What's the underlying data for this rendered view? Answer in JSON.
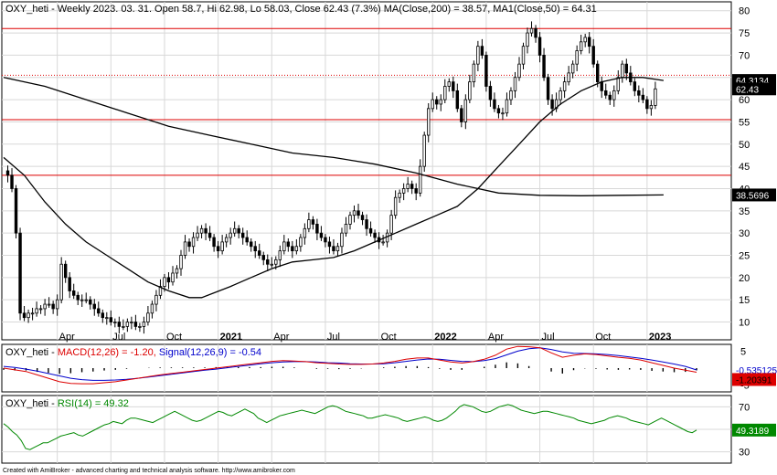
{
  "colors": {
    "candle_up": "#ffffff",
    "candle_down": "#000000",
    "ma": "#000000",
    "hline": "#dd0000",
    "macd": "#dd0000",
    "signal": "#0000cc",
    "rsi": "#008800",
    "grid": "#d8d8d8"
  },
  "chart_data": [
    {
      "type": "candlestick",
      "title": "OXY_heti - Weekly 2023. 03. 31. Open 58.7, Hi 62.98, Lo 58.03, Close 62.43 (7.3%) MA(Close,200) = 38.57, MA1(Close,50) = 64.31",
      "ylim": [
        6,
        82
      ],
      "y_ticks": [
        10,
        15,
        20,
        25,
        30,
        35,
        40,
        45,
        50,
        55,
        60,
        65,
        70,
        75,
        80
      ],
      "x_tick_labels": [
        {
          "label": "Apr",
          "bold": false,
          "x": 13
        },
        {
          "label": "Jul",
          "bold": false,
          "x": 26
        },
        {
          "label": "Oct",
          "bold": false,
          "x": 39
        },
        {
          "label": "2021",
          "bold": true,
          "x": 52
        },
        {
          "label": "Apr",
          "bold": false,
          "x": 65
        },
        {
          "label": "Jul",
          "bold": false,
          "x": 78
        },
        {
          "label": "Oct",
          "bold": false,
          "x": 91
        },
        {
          "label": "2022",
          "bold": true,
          "x": 104
        },
        {
          "label": "Apr",
          "bold": false,
          "x": 117
        },
        {
          "label": "Jul",
          "bold": false,
          "x": 130
        },
        {
          "label": "Oct",
          "bold": false,
          "x": 143
        },
        {
          "label": "2023",
          "bold": true,
          "x": 156
        }
      ],
      "x_range": [
        0,
        168
      ],
      "closes": [
        44,
        43,
        40,
        30,
        12,
        11,
        12,
        12,
        13,
        13,
        14,
        14,
        13,
        15,
        23,
        20,
        17,
        16,
        15,
        15,
        15,
        14,
        13,
        12,
        11,
        11,
        10,
        10,
        9,
        9,
        10,
        10,
        9,
        9,
        10,
        12,
        14,
        16,
        18,
        20,
        19,
        21,
        22,
        25,
        28,
        27,
        29,
        30,
        31,
        30,
        29,
        27,
        26,
        28,
        29,
        30,
        31,
        30,
        29,
        28,
        27,
        26,
        25,
        24,
        23,
        23,
        24,
        26,
        28,
        27,
        26,
        27,
        29,
        31,
        33,
        32,
        30,
        29,
        28,
        27,
        26,
        27,
        30,
        32,
        34,
        35,
        34,
        33,
        31,
        30,
        29,
        28,
        28,
        30,
        34,
        38,
        39,
        40,
        41,
        40,
        39,
        45,
        52,
        58,
        60,
        59,
        60,
        63,
        64,
        62,
        58,
        55,
        60,
        64,
        68,
        72,
        70,
        63,
        60,
        58,
        57,
        57,
        60,
        62,
        65,
        68,
        72,
        75,
        76,
        74,
        70,
        65,
        60,
        58,
        60,
        62,
        64,
        66,
        68,
        71,
        73,
        74,
        72,
        68,
        64,
        62,
        61,
        60,
        62,
        65,
        68,
        66,
        64,
        62,
        61,
        60,
        58,
        58.7,
        62.43
      ],
      "wick_pad": 1.6,
      "ma_long": {
        "name": "MA(Close,200)",
        "last": 38.57,
        "points": [
          [
            0,
            65
          ],
          [
            10,
            63
          ],
          [
            20,
            60
          ],
          [
            30,
            57
          ],
          [
            40,
            54
          ],
          [
            50,
            52
          ],
          [
            60,
            50
          ],
          [
            70,
            48
          ],
          [
            80,
            47
          ],
          [
            90,
            45.5
          ],
          [
            100,
            43.5
          ],
          [
            110,
            41
          ],
          [
            120,
            39
          ],
          [
            130,
            38.5
          ],
          [
            140,
            38.4
          ],
          [
            150,
            38.5
          ],
          [
            160,
            38.57
          ]
        ]
      },
      "ma_mid": {
        "name": "MA1(Close,50)",
        "last": 64.31,
        "points": [
          [
            0,
            47
          ],
          [
            5,
            43
          ],
          [
            10,
            37
          ],
          [
            15,
            32
          ],
          [
            20,
            28
          ],
          [
            25,
            25
          ],
          [
            30,
            22
          ],
          [
            35,
            19
          ],
          [
            40,
            17
          ],
          [
            45,
            15.5
          ],
          [
            48,
            15.5
          ],
          [
            55,
            18
          ],
          [
            60,
            20
          ],
          [
            65,
            22
          ],
          [
            70,
            23.5
          ],
          [
            75,
            24
          ],
          [
            80,
            24.5
          ],
          [
            85,
            26
          ],
          [
            90,
            28
          ],
          [
            95,
            30
          ],
          [
            100,
            32
          ],
          [
            105,
            34
          ],
          [
            110,
            36
          ],
          [
            115,
            40
          ],
          [
            120,
            45
          ],
          [
            125,
            50
          ],
          [
            130,
            55
          ],
          [
            135,
            59
          ],
          [
            140,
            62
          ],
          [
            145,
            64
          ],
          [
            150,
            65
          ],
          [
            155,
            65
          ],
          [
            160,
            64.31
          ]
        ]
      },
      "horizontal_lines": [
        76,
        65.5,
        55.5,
        43
      ],
      "dotted_line": 65.5,
      "value_tags": [
        "64.3134",
        "62.43",
        "38.5696"
      ]
    },
    {
      "type": "line",
      "title_prefix": "OXY_heti - ",
      "title_macd": "MACD(12,26) = -1.20, ",
      "title_signal": "Signal(12,26,9) = -0.54",
      "ylim": [
        -7,
        7
      ],
      "y_ticks": [
        5,
        -5
      ],
      "macd": [
        0,
        -0.5,
        -1,
        -2,
        -3,
        -4,
        -4.5,
        -4.6,
        -4.6,
        -4.3,
        -4,
        -3.5,
        -3,
        -2.5,
        -2,
        -1.6,
        -1.2,
        -0.8,
        -0.4,
        0,
        0.4,
        0.8,
        1.2,
        1.6,
        2,
        2.2,
        2.1,
        1.9,
        1.6,
        1.4,
        1.2,
        1.1,
        1.1,
        1.2,
        1.5,
        2,
        2.6,
        3,
        3,
        2.4,
        1.8,
        1.5,
        1.9,
        2.6,
        3.8,
        5.6,
        6.4,
        6.3,
        6,
        4.5,
        3.2,
        3.8,
        4.2,
        4,
        3.6,
        3.2,
        2.9,
        2.4,
        1.6,
        0.8,
        0,
        -0.6,
        -1.2
      ],
      "signal": [
        0.5,
        0.2,
        -0.3,
        -0.9,
        -1.6,
        -2.3,
        -3,
        -3.4,
        -3.6,
        -3.6,
        -3.5,
        -3.3,
        -3,
        -2.6,
        -2.2,
        -1.8,
        -1.4,
        -1,
        -0.6,
        -0.3,
        0.1,
        0.5,
        0.9,
        1.3,
        1.6,
        1.8,
        1.9,
        1.9,
        1.8,
        1.6,
        1.5,
        1.3,
        1.2,
        1.2,
        1.3,
        1.6,
        2,
        2.4,
        2.7,
        2.6,
        2.3,
        2,
        1.9,
        2.2,
        2.8,
        3.9,
        5,
        5.7,
        6,
        5.5,
        4.8,
        4.4,
        4.3,
        4.2,
        4,
        3.7,
        3.3,
        2.9,
        2.4,
        1.8,
        1.2,
        0.5,
        -0.54
      ],
      "histogram": [
        -0.5,
        -0.7,
        -0.7,
        -1.1,
        -1.4,
        -1.7,
        -1.5,
        -1.2,
        -1,
        -0.7,
        -0.5,
        -0.2,
        0,
        0.1,
        0.2,
        0.2,
        0.2,
        0.2,
        0.2,
        0.3,
        0.3,
        0.3,
        0.3,
        0.3,
        0.4,
        0.4,
        0.2,
        0,
        -0.2,
        -0.2,
        -0.3,
        -0.2,
        -0.1,
        0,
        0.2,
        0.4,
        0.6,
        0.6,
        0.3,
        -0.2,
        -0.5,
        -0.5,
        0,
        0.4,
        1,
        1.7,
        1.4,
        0.6,
        0,
        -1,
        -1.6,
        -0.6,
        -0.1,
        -0.2,
        -0.4,
        -0.5,
        -0.4,
        -0.5,
        -0.8,
        -1,
        -1.2,
        -1.1,
        -0.66
      ],
      "value_tags": [
        "-0.535125",
        "-1.20391"
      ]
    },
    {
      "type": "line",
      "title_prefix": "OXY_heti - ",
      "title_rsi": "RSI(14) = 49.32",
      "ylim": [
        20,
        80
      ],
      "y_ticks": [
        70,
        50,
        30
      ],
      "rsi": [
        55,
        52,
        48,
        45,
        40,
        33,
        32,
        34,
        36,
        38,
        38,
        40,
        42,
        44,
        45,
        46,
        47,
        45,
        44,
        46,
        48,
        50,
        52,
        54,
        55,
        57,
        56,
        55,
        58,
        60,
        60,
        59,
        58,
        57,
        56,
        58,
        60,
        62,
        64,
        66,
        64,
        62,
        60,
        58,
        57,
        58,
        60,
        62,
        64,
        66,
        65,
        63,
        62,
        64,
        66,
        68,
        66,
        64,
        60,
        58,
        56,
        58,
        60,
        62,
        63,
        64,
        65,
        66,
        67,
        66,
        65,
        64,
        66,
        68,
        70,
        71,
        70,
        68,
        66,
        65,
        64,
        63,
        62,
        60,
        60,
        61,
        62,
        63,
        62,
        61,
        60,
        58,
        57,
        58,
        59,
        60,
        61,
        60,
        58,
        57,
        58,
        60,
        63,
        66,
        70,
        72,
        71,
        70,
        68,
        66,
        65,
        66,
        68,
        70,
        71,
        72,
        71,
        69,
        67,
        66,
        65,
        64,
        65,
        66,
        66,
        65,
        64,
        63,
        62,
        61,
        60,
        58,
        57,
        56,
        55,
        56,
        57,
        58,
        60,
        61,
        62,
        61,
        60,
        58,
        57,
        56,
        55,
        54,
        56,
        58,
        60,
        58,
        56,
        54,
        52,
        50,
        48,
        47,
        49.32
      ],
      "value_tags": [
        "49.3189"
      ]
    }
  ],
  "footer": "Created with AmiBroker - advanced charting and technical analysis software. http://www.amibroker.com"
}
